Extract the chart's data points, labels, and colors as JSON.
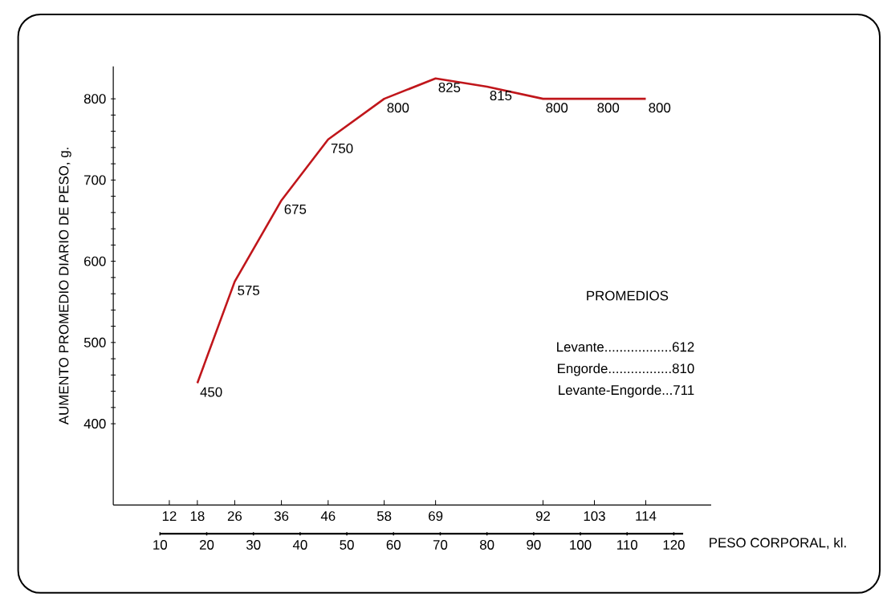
{
  "chart_data": {
    "type": "line",
    "ylabel": "AUMENTO PROMEDIO DIARIO DE PESO, g.",
    "x2label": "PESO CORPORAL, kl.",
    "xlim": [
      0,
      128
    ],
    "xticks": [
      12,
      18,
      26,
      36,
      46,
      58,
      69,
      92,
      103,
      114
    ],
    "x2lim": [
      10,
      122
    ],
    "x2ticks": [
      10,
      20,
      30,
      40,
      50,
      60,
      70,
      80,
      90,
      100,
      110,
      120
    ],
    "ylim": [
      300,
      840
    ],
    "yticks": [
      400,
      {
        "value": 420,
        "label": null
      },
      {
        "value": 440,
        "label": null
      },
      {
        "value": 460,
        "label": null
      },
      {
        "value": 480,
        "label": null
      },
      500,
      {
        "value": 520,
        "label": null
      },
      {
        "value": 540,
        "label": null
      },
      {
        "value": 560,
        "label": null
      },
      {
        "value": 580,
        "label": null
      },
      600,
      {
        "value": 620,
        "label": null
      },
      {
        "value": 640,
        "label": null
      },
      {
        "value": 660,
        "label": null
      },
      {
        "value": 680,
        "label": null
      },
      700,
      {
        "value": 720,
        "label": null
      },
      {
        "value": 740,
        "label": null
      },
      {
        "value": 760,
        "label": null
      },
      {
        "value": 780,
        "label": null
      },
      800
    ],
    "series": [
      {
        "color": "#c0161b",
        "x": [
          18,
          26,
          36,
          46,
          58,
          69,
          80,
          92,
          103,
          114
        ],
        "values": [
          450,
          575,
          675,
          750,
          800,
          825,
          815,
          800,
          800,
          800
        ]
      }
    ],
    "data_labels": true,
    "annotations": [
      "PROMEDIOS",
      "Levante..................612",
      "Engorde.................810",
      "Levante-Engorde...711"
    ]
  }
}
